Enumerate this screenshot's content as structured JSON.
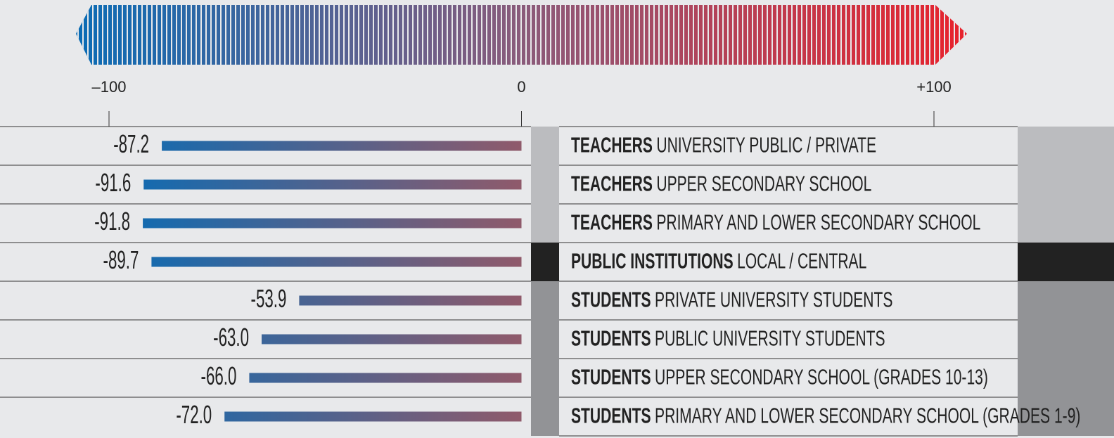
{
  "chart_data": {
    "type": "bar",
    "orientation": "horizontal",
    "groups": [
      "TEACHERS",
      "TEACHERS",
      "TEACHERS",
      "PUBLIC INSTITUTIONS",
      "STUDENTS",
      "STUDENTS",
      "STUDENTS",
      "STUDENTS"
    ],
    "categories": [
      "UNIVERSITY PUBLIC / PRIVATE",
      "UPPER SECONDARY SCHOOL",
      "PRIMARY AND LOWER SECONDARY SCHOOL",
      "LOCAL / CENTRAL",
      "PRIVATE UNIVERSITY STUDENTS",
      "PUBLIC UNIVERSITY STUDENTS",
      "UPPER SECONDARY SCHOOL (GRADES 10-13)",
      "PRIMARY AND LOWER SECONDARY SCHOOL (GRADES 1-9)"
    ],
    "values": [
      -87.2,
      -91.6,
      -91.8,
      -89.7,
      -53.9,
      -63.0,
      -66.0,
      -72.0
    ],
    "value_labels": [
      "-87.2",
      "-91.6",
      "-91.8",
      "-89.7",
      "-53.9",
      "-63.0",
      "-66.0",
      "-72.0"
    ],
    "band_colors": [
      "#bbbcbf",
      "#bbbcbf",
      "#bbbcbf",
      "#222222",
      "#929396",
      "#929396",
      "#929396",
      "#929396"
    ],
    "color_negative": "#0a6cb5",
    "color_positive": "#e8222c",
    "xlim": [
      -100,
      100
    ],
    "xticks": [
      {
        "value": -100,
        "label": "–100"
      },
      0,
      {
        "value": 100,
        "label": "+100"
      }
    ]
  }
}
